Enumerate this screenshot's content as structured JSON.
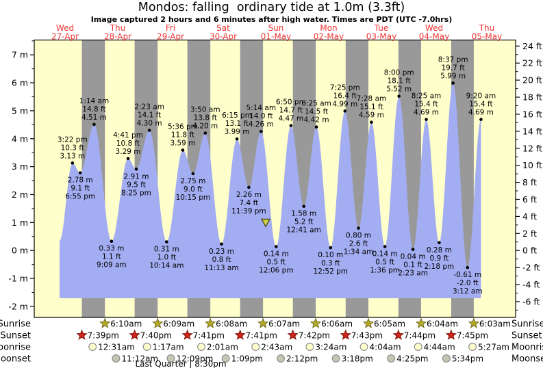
{
  "title": "Mondos: falling  ordinary tide at 1.0m (3.3ft)",
  "subtitle": "Image captured 2 hours and 6 minutes after high water. Times are PDT (UTC -7.0hrs)",
  "chart_data": {
    "type": "area",
    "title": "Mondos: falling  ordinary tide at 1.0m (3.3ft)",
    "subtitle": "Image captured 2 hours and 6 minutes after high water. Times are PDT (UTC -7.0hrs)",
    "x_days": [
      {
        "name": "Wed",
        "date": "27-Apr"
      },
      {
        "name": "Thu",
        "date": "28-Apr"
      },
      {
        "name": "Fri",
        "date": "29-Apr"
      },
      {
        "name": "Sat",
        "date": "30-Apr"
      },
      {
        "name": "Sun",
        "date": "01-May"
      },
      {
        "name": "Mon",
        "date": "02-May"
      },
      {
        "name": "Tue",
        "date": "03-May"
      },
      {
        "name": "Wed",
        "date": "04-May"
      },
      {
        "name": "Thu",
        "date": "05-May"
      }
    ],
    "y_left_axis": {
      "unit": "m",
      "tick_labels": [
        "7 m",
        "6 m",
        "5 m",
        "4 m",
        "3 m",
        "2 m",
        "1 m",
        "0 m",
        "-1 m",
        "-2 m"
      ],
      "tick_values": [
        7,
        6,
        5,
        4,
        3,
        2,
        1,
        0,
        -1,
        -2
      ]
    },
    "y_right_axis": {
      "unit": "ft",
      "tick_labels": [
        "24 ft",
        "22 ft",
        "20 ft",
        "18 ft",
        "16 ft",
        "14 ft",
        "12 ft",
        "10 ft",
        "8 ft",
        "6 ft",
        "4 ft",
        "2 ft",
        "0 ft",
        "-2 ft",
        "-4 ft",
        "-6 ft"
      ],
      "tick_values": [
        24,
        22,
        20,
        18,
        16,
        14,
        12,
        10,
        8,
        6,
        4,
        2,
        0,
        -2,
        -4,
        -6
      ]
    },
    "series_start": {
      "day": 0,
      "time": "9:30am",
      "height_m": 0.35
    },
    "tide_events": [
      {
        "day": 0,
        "time": "3:22 pm",
        "ft": "10.3 ft",
        "m": "3.13 m",
        "height_m": 3.13,
        "kind": "high"
      },
      {
        "day": 0,
        "time": "6:55 pm",
        "ft": "9.1 ft",
        "m": "2.78 m",
        "height_m": 2.78,
        "kind": "low"
      },
      {
        "day": 1,
        "time": "1:14 am",
        "ft": "14.8 ft",
        "m": "4.51 m",
        "height_m": 4.51,
        "kind": "high"
      },
      {
        "day": 1,
        "time": "9:09 am",
        "ft": "1.1 ft",
        "m": "0.33 m",
        "height_m": 0.33,
        "kind": "low"
      },
      {
        "day": 1,
        "time": "4:41 pm",
        "ft": "10.8 ft",
        "m": "3.29 m",
        "height_m": 3.29,
        "kind": "high"
      },
      {
        "day": 1,
        "time": "8:25 pm",
        "ft": "9.5 ft",
        "m": "2.91 m",
        "height_m": 2.91,
        "kind": "low"
      },
      {
        "day": 2,
        "time": "2:23 am",
        "ft": "14.1 ft",
        "m": "4.30 m",
        "height_m": 4.3,
        "kind": "high"
      },
      {
        "day": 2,
        "time": "10:14 am",
        "ft": "1.0 ft",
        "m": "0.31 m",
        "height_m": 0.31,
        "kind": "low"
      },
      {
        "day": 2,
        "time": "5:36 pm",
        "ft": "11.8 ft",
        "m": "3.59 m",
        "height_m": 3.59,
        "kind": "high"
      },
      {
        "day": 2,
        "time": "10:15 pm",
        "ft": "9.0 ft",
        "m": "2.75 m",
        "height_m": 2.75,
        "kind": "low"
      },
      {
        "day": 3,
        "time": "3:50 am",
        "ft": "13.8 ft",
        "m": "4.20 m",
        "height_m": 4.2,
        "kind": "high"
      },
      {
        "day": 3,
        "time": "11:13 am",
        "ft": "0.8 ft",
        "m": "0.23 m",
        "height_m": 0.23,
        "kind": "low"
      },
      {
        "day": 3,
        "time": "6:15 pm",
        "ft": "13.1 ft",
        "m": "3.99 m",
        "height_m": 3.99,
        "kind": "high"
      },
      {
        "day": 3,
        "time": "11:39 pm",
        "ft": "7.4 ft",
        "m": "2.26 m",
        "height_m": 2.26,
        "kind": "low"
      },
      {
        "day": 4,
        "time": "5:14 am",
        "ft": "14.0 ft",
        "m": "4.26 m",
        "height_m": 4.26,
        "kind": "high"
      },
      {
        "day": 4,
        "time": "12:06 pm",
        "ft": "0.5 ft",
        "m": "0.14 m",
        "height_m": 0.14,
        "kind": "low"
      },
      {
        "day": 4,
        "time": "6:50 pm",
        "ft": "14.7 ft",
        "m": "4.47 m",
        "height_m": 4.47,
        "kind": "high"
      },
      {
        "day": 5,
        "time": "12:41 am",
        "ft": "5.2 ft",
        "m": "1.58 m",
        "height_m": 1.58,
        "kind": "low"
      },
      {
        "day": 5,
        "time": "6:25 am",
        "ft": "14.5 ft",
        "m": "4.42 m",
        "height_m": 4.42,
        "kind": "high"
      },
      {
        "day": 5,
        "time": "12:52 pm",
        "ft": "0.3 ft",
        "m": "0.10 m",
        "height_m": 0.1,
        "kind": "low"
      },
      {
        "day": 5,
        "time": "7:25 pm",
        "ft": "16.4 ft",
        "m": "4.99 m",
        "height_m": 4.99,
        "kind": "high"
      },
      {
        "day": 6,
        "time": "1:34 am",
        "ft": "2.6 ft",
        "m": "0.80 m",
        "height_m": 0.8,
        "kind": "low"
      },
      {
        "day": 6,
        "time": "7:28 am",
        "ft": "15.1 ft",
        "m": "4.59 m",
        "height_m": 4.59,
        "kind": "high"
      },
      {
        "day": 6,
        "time": "1:36 pm",
        "ft": "0.5 ft",
        "m": "0.14 m",
        "height_m": 0.14,
        "kind": "low"
      },
      {
        "day": 6,
        "time": "8:00 pm",
        "ft": "18.1 ft",
        "m": "5.52 m",
        "height_m": 5.52,
        "kind": "high"
      },
      {
        "day": 7,
        "time": "2:23 am",
        "ft": "0.1 ft",
        "m": "0.04 m",
        "height_m": 0.04,
        "kind": "low"
      },
      {
        "day": 7,
        "time": "8:25 am",
        "ft": "15.4 ft",
        "m": "4.69 m",
        "height_m": 4.69,
        "kind": "high"
      },
      {
        "day": 7,
        "time": "2:18 pm",
        "ft": "0.9 ft",
        "m": "0.28 m",
        "height_m": 0.28,
        "kind": "low"
      },
      {
        "day": 7,
        "time": "8:37 pm",
        "ft": "19.7 ft",
        "m": "5.99 m",
        "height_m": 5.99,
        "kind": "high"
      },
      {
        "day": 8,
        "time": "3:12 am",
        "ft": "-2.0 ft",
        "m": "-0.61 m",
        "height_m": -0.61,
        "kind": "low"
      },
      {
        "day": 8,
        "time": "9:20 am",
        "ft": "15.4 ft",
        "m": "4.69 m",
        "height_m": 4.69,
        "kind": "high"
      }
    ],
    "current_marker": {
      "day": 4,
      "time": "7:20am",
      "level_m": 1.0
    },
    "astro": {
      "row_labels": [
        "Sunrise",
        "Sunset",
        "Moonrise",
        "Moonset"
      ],
      "sunrise": [
        {
          "day": 1,
          "time": "6:10am"
        },
        {
          "day": 2,
          "time": "6:09am"
        },
        {
          "day": 3,
          "time": "6:08am"
        },
        {
          "day": 4,
          "time": "6:07am"
        },
        {
          "day": 5,
          "time": "6:06am"
        },
        {
          "day": 6,
          "time": "6:05am"
        },
        {
          "day": 7,
          "time": "6:04am"
        },
        {
          "day": 8,
          "time": "6:03am"
        }
      ],
      "sunset": [
        {
          "day": 0,
          "time": "7:39pm"
        },
        {
          "day": 1,
          "time": "7:40pm"
        },
        {
          "day": 2,
          "time": "7:41pm"
        },
        {
          "day": 3,
          "time": "7:41pm"
        },
        {
          "day": 4,
          "time": "7:42pm"
        },
        {
          "day": 5,
          "time": "7:43pm"
        },
        {
          "day": 6,
          "time": "7:44pm"
        },
        {
          "day": 7,
          "time": "7:45pm"
        }
      ],
      "moonrise": [
        {
          "day": 1,
          "time": "12:31am"
        },
        {
          "day": 2,
          "time": "1:17am"
        },
        {
          "day": 3,
          "time": "2:01am"
        },
        {
          "day": 4,
          "time": "2:43am"
        },
        {
          "day": 5,
          "time": "3:24am"
        },
        {
          "day": 6,
          "time": "4:04am"
        },
        {
          "day": 7,
          "time": "4:44am"
        },
        {
          "day": 8,
          "time": "5:27am"
        }
      ],
      "moonset": [
        {
          "day": 1,
          "time": "11:12am"
        },
        {
          "day": 2,
          "time": "12:09pm"
        },
        {
          "day": 3,
          "time": "1:09pm"
        },
        {
          "day": 4,
          "time": "2:12pm"
        },
        {
          "day": 5,
          "time": "3:18pm"
        },
        {
          "day": 6,
          "time": "4:25pm"
        },
        {
          "day": 7,
          "time": "5:34pm"
        }
      ],
      "moon_phase": "Last Quarter | 8:30pm"
    },
    "colors": {
      "day_band": "#ffffcc",
      "night_band": "#999999",
      "water": "#a3adf2",
      "date_red": "#f03434",
      "axis": "#000000",
      "sunrise_star": "#b3aa28",
      "sunrise_star_stroke": "#6e691a",
      "sunset_star": "#d2261a",
      "sunset_star_stroke": "#7c130c",
      "moonrise_fill": "#ffffcc",
      "moonset_fill": "#c6c6b2",
      "moon_stroke": "#8f8f8f",
      "marker_fill": "#cdd145",
      "marker_stroke": "#44441a"
    }
  }
}
